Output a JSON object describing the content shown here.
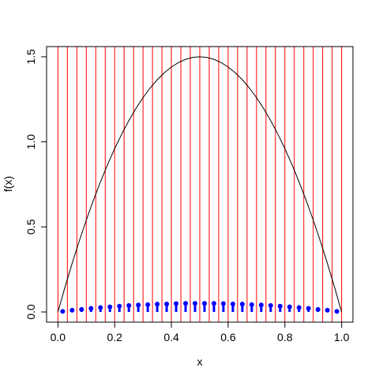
{
  "chart_data": {
    "type": "line",
    "xlabel": "x",
    "ylabel": "f(x)",
    "xlim": [
      -0.04,
      1.04
    ],
    "ylim": [
      -0.06,
      1.56
    ],
    "xticks": [
      {
        "value": 0,
        "label": "0.0"
      },
      0.2,
      0.4,
      0.6,
      0.8,
      {
        "value": 1,
        "label": "1.0"
      }
    ],
    "yticks": [
      {
        "value": 0,
        "label": "0.0"
      },
      0.5,
      {
        "value": 1,
        "label": "1.0"
      },
      1.5
    ],
    "vlines": {
      "color": "#ff0000",
      "x": [
        0,
        0.0333,
        0.0667,
        0.1,
        0.1333,
        0.1667,
        0.2,
        0.2333,
        0.2667,
        0.3,
        0.3333,
        0.3667,
        0.4,
        0.4333,
        0.4667,
        0.5,
        0.5333,
        0.5667,
        0.6,
        0.6333,
        0.6667,
        0.7,
        0.7333,
        0.7667,
        0.8,
        0.8333,
        0.8667,
        0.9,
        0.9333,
        0.9667,
        1
      ]
    },
    "series": [
      {
        "type": "line",
        "color": "#000000",
        "x": [
          0,
          0.025,
          0.05,
          0.075,
          0.1,
          0.125,
          0.15,
          0.175,
          0.2,
          0.225,
          0.25,
          0.275,
          0.3,
          0.325,
          0.35,
          0.375,
          0.4,
          0.425,
          0.45,
          0.475,
          0.5,
          0.525,
          0.55,
          0.575,
          0.6,
          0.625,
          0.65,
          0.675,
          0.7,
          0.725,
          0.75,
          0.775,
          0.8,
          0.825,
          0.85,
          0.875,
          0.9,
          0.925,
          0.95,
          0.975,
          1
        ],
        "values": [
          0,
          0.14625,
          0.285,
          0.41625,
          0.54,
          0.65625,
          0.765,
          0.86625,
          0.96,
          1.04625,
          1.125,
          1.19625,
          1.26,
          1.31625,
          1.365,
          1.40625,
          1.44,
          1.46625,
          1.485,
          1.49625,
          1.5,
          1.49625,
          1.485,
          1.46625,
          1.44,
          1.40625,
          1.365,
          1.31625,
          1.26,
          1.19625,
          1.125,
          1.04625,
          0.96,
          0.86625,
          0.765,
          0.65625,
          0.54,
          0.41625,
          0.285,
          0.14625,
          0
        ]
      },
      {
        "type": "stem",
        "color": "#0000ff",
        "x": [
          0.0167,
          0.05,
          0.0833,
          0.1167,
          0.15,
          0.1833,
          0.2167,
          0.25,
          0.2833,
          0.3167,
          0.35,
          0.3833,
          0.4167,
          0.45,
          0.4833,
          0.5167,
          0.55,
          0.5833,
          0.6167,
          0.65,
          0.6833,
          0.7167,
          0.75,
          0.7833,
          0.8167,
          0.85,
          0.8833,
          0.9167,
          0.95,
          0.9833
        ],
        "values": [
          0.003,
          0.01,
          0.015,
          0.021,
          0.026,
          0.03,
          0.034,
          0.038,
          0.041,
          0.043,
          0.046,
          0.047,
          0.049,
          0.05,
          0.05,
          0.05,
          0.05,
          0.049,
          0.047,
          0.046,
          0.043,
          0.041,
          0.038,
          0.034,
          0.03,
          0.026,
          0.021,
          0.015,
          0.01,
          0.003
        ]
      }
    ]
  }
}
